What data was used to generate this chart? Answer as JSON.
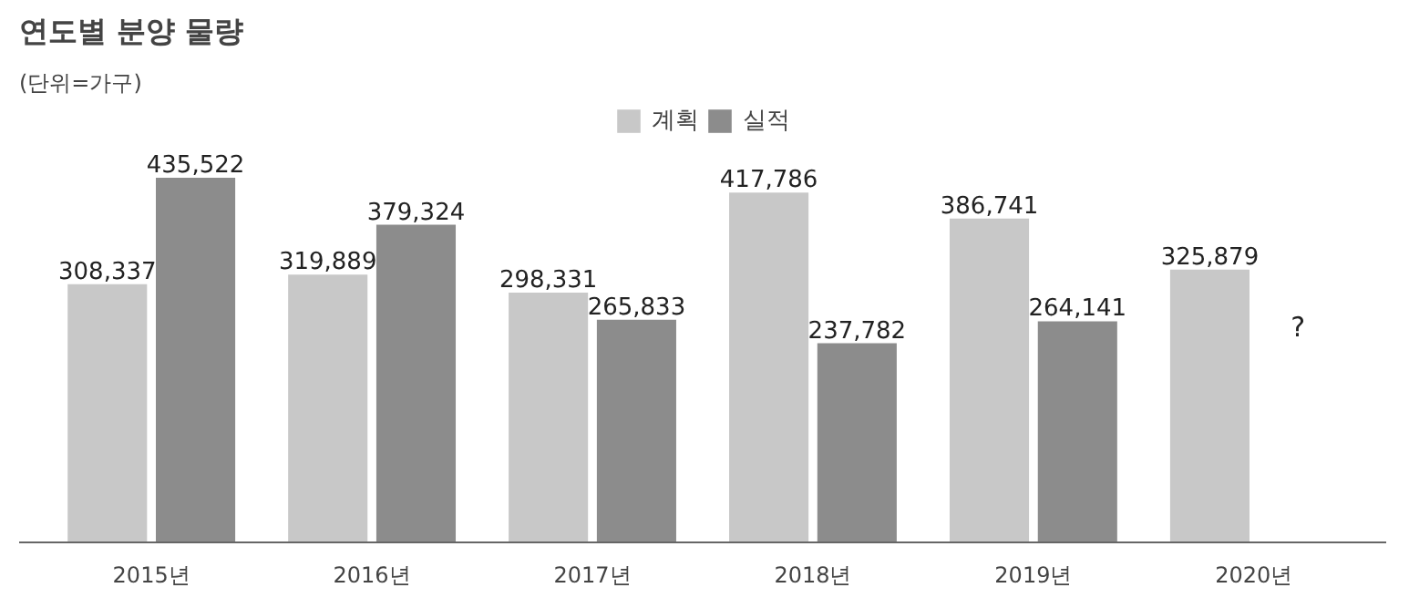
{
  "chart_data": {
    "type": "bar",
    "title": "연도별 분양 물량",
    "subtitle": "(단위=가구)",
    "categories": [
      "2015년",
      "2016년",
      "2017년",
      "2018년",
      "2019년",
      "2020년"
    ],
    "series": [
      {
        "name": "계획",
        "color": "#c8c8c8",
        "values": [
          308337,
          319889,
          298331,
          417786,
          386741,
          325879
        ],
        "value_labels": [
          "308,337",
          "319,889",
          "298,331",
          "417,786",
          "386,741",
          "325,879"
        ]
      },
      {
        "name": "실적",
        "color": "#8c8c8c",
        "values": [
          435522,
          379324,
          265833,
          237782,
          264141,
          null
        ],
        "value_labels": [
          "435,522",
          "379,324",
          "265,833",
          "237,782",
          "264,141",
          null
        ]
      }
    ],
    "legend": "top",
    "annotations": [
      "?"
    ]
  }
}
